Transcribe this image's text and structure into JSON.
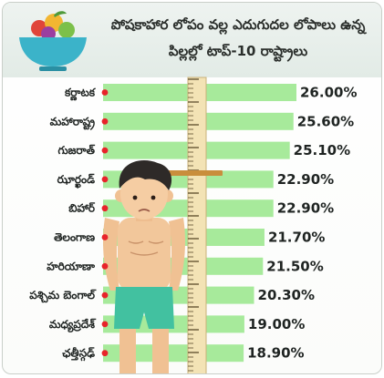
{
  "chart_data": {
    "type": "bar",
    "orientation": "horizontal",
    "title": "పోషకాహార లోపం వల్ల ఎదుగుదల లోపాలు ఉన్న పిల్లల్లో టాప్-10 రాష్ట్రాలు",
    "categories": [
      "కర్ణాటక",
      "మహారాష్ట్ర",
      "గుజరాత్",
      "ఝార్ఖండ్",
      "బిహార్",
      "తెలంగాణ",
      "హరియాణా",
      "పశ్చిమ బెంగాల్",
      "మధ్యప్రదేశ్",
      "ఛత్తీస్గఢ్"
    ],
    "values": [
      26.0,
      25.6,
      25.1,
      22.9,
      22.9,
      21.7,
      21.5,
      20.3,
      19.0,
      18.9
    ],
    "value_labels": [
      "26.00%",
      "25.60%",
      "25.10%",
      "22.90%",
      "22.90%",
      "21.70%",
      "21.50%",
      "20.30%",
      "19.00%",
      "18.90%"
    ],
    "unit": "%",
    "xlim": [
      0,
      26
    ],
    "grid": false,
    "legend": "none"
  },
  "colors": {
    "bar": "#a7ea9b",
    "bullet": "#e8232b",
    "ruler": "#f3e3b5",
    "ruler_tick": "#5a4a2a",
    "header_band": "#e6ede9"
  },
  "icons": [
    "fruit-bowl-icon",
    "height-ruler",
    "boy-illustration"
  ]
}
